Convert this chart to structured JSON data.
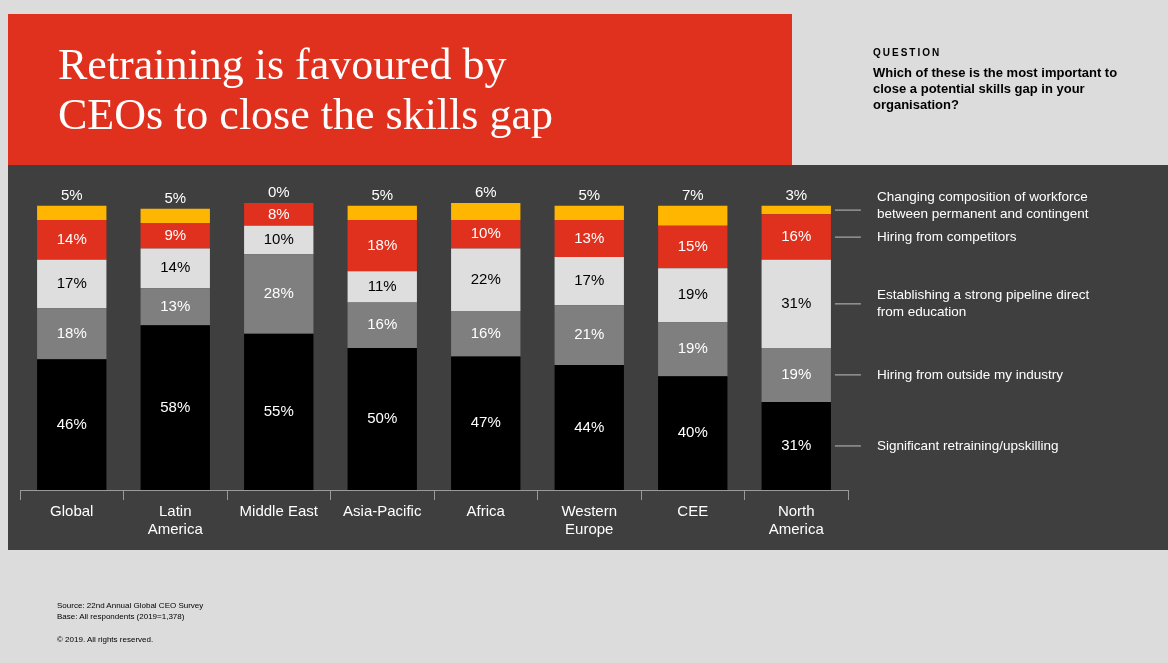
{
  "chart_data": {
    "type": "bar",
    "title": "Retraining is favoured by CEOs to close the skills gap",
    "annotations": [
      "QUESTION",
      "Which of these is the most important to close a potential skills gap in your organisation?",
      "Source: 22nd Annual Global CEO Survey",
      "Base: All respondents (2019=1,378)",
      "© 2019. All rights reserved."
    ],
    "categories": [
      "Global",
      "Latin America",
      "Middle East",
      "Asia-Pacific",
      "Africa",
      "Western Europe",
      "CEE",
      "North America"
    ],
    "stacked": true,
    "legend": "right",
    "series": [
      {
        "name": "Significant retraining/upskilling",
        "color": "#000000",
        "values": [
          46,
          58,
          55,
          50,
          47,
          44,
          40,
          31
        ],
        "value_labels": [
          "46%",
          "58%",
          "55%",
          "50%",
          "47%",
          "44%",
          "40%",
          "31%"
        ]
      },
      {
        "name": "Hiring from outside my industry",
        "color": "#7f7f7f",
        "values": [
          18,
          13,
          28,
          16,
          16,
          21,
          19,
          19
        ],
        "value_labels": [
          "18%",
          "13%",
          "28%",
          "16%",
          "16%",
          "21%",
          "19%",
          "19%"
        ]
      },
      {
        "name": "Establishing a strong pipeline direct from education",
        "color": "#dedede",
        "values": [
          17,
          14,
          10,
          11,
          22,
          17,
          19,
          31
        ],
        "value_labels": [
          "17%",
          "14%",
          "10%",
          "11%",
          "22%",
          "17%",
          "19%",
          "31%"
        ]
      },
      {
        "name": "Hiring from competitors",
        "color": "#e0301e",
        "values": [
          14,
          9,
          8,
          18,
          10,
          13,
          15,
          16
        ],
        "value_labels": [
          "14%",
          "9%",
          "8%",
          "18%",
          "10%",
          "13%",
          "15%",
          "16%"
        ]
      },
      {
        "name": "Changing composition of workforce between permanent and contingent",
        "color": "#ffb600",
        "values": [
          5,
          5,
          0,
          5,
          6,
          5,
          7,
          3
        ],
        "value_labels": [
          "5%",
          "5%",
          "0%",
          "5%",
          "6%",
          "5%",
          "7%",
          "3%"
        ]
      }
    ]
  }
}
